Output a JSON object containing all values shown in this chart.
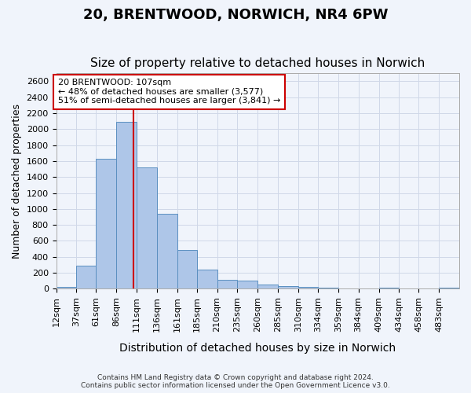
{
  "title": "20, BRENTWOOD, NORWICH, NR4 6PW",
  "subtitle": "Size of property relative to detached houses in Norwich",
  "xlabel": "Distribution of detached houses by size in Norwich",
  "ylabel": "Number of detached properties",
  "footer_line1": "Contains HM Land Registry data © Crown copyright and database right 2024.",
  "footer_line2": "Contains public sector information licensed under the Open Government Licence v3.0.",
  "annotation_title": "20 BRENTWOOD: 107sqm",
  "annotation_line1": "← 48% of detached houses are smaller (3,577)",
  "annotation_line2": "51% of semi-detached houses are larger (3,841) →",
  "property_sqm": 107,
  "bar_edges": [
    12,
    37,
    61,
    86,
    111,
    136,
    161,
    185,
    210,
    235,
    260,
    285,
    310,
    334,
    359,
    384,
    409,
    434,
    458,
    483,
    508
  ],
  "bar_heights": [
    20,
    290,
    1630,
    2090,
    1520,
    940,
    490,
    240,
    110,
    100,
    50,
    30,
    20,
    10,
    5,
    5,
    15,
    5,
    5,
    15
  ],
  "bar_color": "#aec6e8",
  "bar_edge_color": "#5a8fc0",
  "vline_color": "#cc0000",
  "vline_x": 107,
  "annotation_box_color": "#cc0000",
  "annotation_bg": "#ffffff",
  "grid_color": "#d0d8e8",
  "background_color": "#f0f4fb",
  "ylim": [
    0,
    2700
  ],
  "yticks": [
    0,
    200,
    400,
    600,
    800,
    1000,
    1200,
    1400,
    1600,
    1800,
    2000,
    2200,
    2400,
    2600
  ],
  "title_fontsize": 13,
  "subtitle_fontsize": 11,
  "xlabel_fontsize": 10,
  "ylabel_fontsize": 9,
  "tick_label_fontsize": 8
}
